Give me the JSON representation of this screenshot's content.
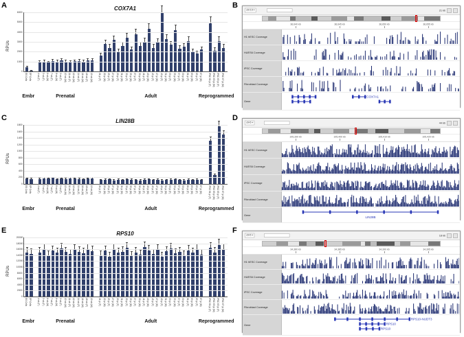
{
  "panels": {
    "letters": [
      "A",
      "B",
      "C",
      "D",
      "E",
      "F"
    ]
  },
  "chart_data": [
    {
      "type": "bar",
      "title": "COX7A1",
      "ylabel": "RPUs",
      "ylim": [
        0,
        6000
      ],
      "ytick_step": 1000,
      "bar_color": "#31406b",
      "error_pct": 0.12,
      "groups": [
        {
          "label": "Embr",
          "count": 2
        },
        {
          "label": "Prenatal",
          "count": 13
        },
        {
          "label": "Adult",
          "count": 24
        },
        {
          "label": "Reprogrammed",
          "count": 4
        }
      ],
      "categories": [
        "ES Cells",
        "EP Cells",
        "4 wk (F)",
        "5 wk (F)",
        "6 wk (M)",
        "7 wk (F)",
        "8 wk (M)",
        "9 wk (F)",
        "10 wk (M)",
        "11 wk (F)",
        "12 wk (M)",
        "14 wk (F)",
        "16 wk (M)",
        "18 wk (F)",
        "19 wk (M)",
        "21 yr (F)",
        "22 yr (M)",
        "25 yr (F)",
        "27 yr (M)",
        "29 yr (F)",
        "31 yr (M)",
        "33 yr (F)",
        "35 yr (M)",
        "37 yr (F)",
        "39 yr (M)",
        "41 yr (F)",
        "43 yr (M)",
        "45 yr (F)",
        "47 yr (M)",
        "49 yr (F)",
        "51 yr (M)",
        "53 yr (F)",
        "55 yr (M)",
        "57 yr (F)",
        "59 yr (M)",
        "61 yr (F)",
        "63 yr (M)",
        "65 yr (F)",
        "67 yr (M)",
        "iPSC 61 yr (F)",
        "iPSC 63 yr (M)",
        "iPSC 65 yr (F)",
        "iPSC 67 yr (M)"
      ],
      "values": [
        420,
        60,
        950,
        1000,
        900,
        1050,
        980,
        1100,
        1000,
        950,
        1020,
        1080,
        1010,
        1100,
        1150,
        1600,
        2800,
        2400,
        3200,
        2000,
        2600,
        3400,
        2200,
        3800,
        2600,
        3000,
        4300,
        2400,
        2900,
        5900,
        3300,
        2700,
        4200,
        2300,
        2500,
        3100,
        2000,
        1800,
        2200,
        4900,
        2100,
        3100,
        2400
      ]
    },
    {
      "type": "bar",
      "title": "LIN28B",
      "ylabel": "RPUs",
      "ylim": [
        0,
        1800
      ],
      "ytick_step": 200,
      "bar_color": "#31406b",
      "error_pct": 0.08,
      "groups": [
        {
          "label": "Embr",
          "count": 2
        },
        {
          "label": "Prenatal",
          "count": 13
        },
        {
          "label": "Adult",
          "count": 24
        },
        {
          "label": "Reprogrammed",
          "count": 4
        }
      ],
      "categories": [
        "ES Cells",
        "EP Cells",
        "4 wk (F)",
        "5 wk (F)",
        "6 wk (M)",
        "7 wk (F)",
        "8 wk (M)",
        "9 wk (F)",
        "10 wk (M)",
        "11 wk (F)",
        "12 wk (M)",
        "14 wk (F)",
        "16 wk (M)",
        "18 wk (F)",
        "19 wk (M)",
        "21 yr (F)",
        "22 yr (M)",
        "25 yr (F)",
        "27 yr (M)",
        "29 yr (F)",
        "31 yr (M)",
        "33 yr (F)",
        "35 yr (M)",
        "37 yr (F)",
        "39 yr (M)",
        "41 yr (F)",
        "43 yr (M)",
        "45 yr (F)",
        "47 yr (M)",
        "49 yr (F)",
        "51 yr (M)",
        "53 yr (F)",
        "55 yr (M)",
        "57 yr (F)",
        "59 yr (M)",
        "61 yr (F)",
        "63 yr (M)",
        "65 yr (F)",
        "67 yr (M)",
        "iPSC 61 yr (F)",
        "iPSC 63 yr (M)",
        "iPSC 65 yr (F)",
        "iPSC 67 yr (M)"
      ],
      "values": [
        160,
        150,
        150,
        170,
        160,
        180,
        140,
        160,
        150,
        170,
        160,
        150,
        140,
        160,
        170,
        120,
        130,
        140,
        110,
        130,
        120,
        140,
        130,
        120,
        110,
        130,
        140,
        120,
        130,
        110,
        120,
        130,
        140,
        120,
        110,
        130,
        120,
        130,
        120,
        1310,
        280,
        1760,
        1500
      ]
    },
    {
      "type": "bar",
      "title": "RPS10",
      "ylabel": "RPUs",
      "ylim": [
        0,
        20000
      ],
      "ytick_step": 2000,
      "bar_color": "#31406b",
      "error_pct": 0.1,
      "groups": [
        {
          "label": "Embr",
          "count": 2
        },
        {
          "label": "Prenatal",
          "count": 13
        },
        {
          "label": "Adult",
          "count": 24
        },
        {
          "label": "Reprogrammed",
          "count": 4
        }
      ],
      "categories": [
        "ES Cells",
        "EP Cells",
        "4 wk (F)",
        "5 wk (F)",
        "6 wk (M)",
        "7 wk (F)",
        "8 wk (M)",
        "9 wk (F)",
        "10 wk (M)",
        "11 wk (F)",
        "12 wk (M)",
        "14 wk (F)",
        "16 wk (M)",
        "18 wk (F)",
        "19 wk (M)",
        "21 yr (F)",
        "22 yr (M)",
        "25 yr (F)",
        "27 yr (M)",
        "29 yr (F)",
        "31 yr (M)",
        "33 yr (F)",
        "35 yr (M)",
        "37 yr (F)",
        "39 yr (M)",
        "41 yr (F)",
        "43 yr (M)",
        "45 yr (F)",
        "47 yr (M)",
        "49 yr (F)",
        "51 yr (M)",
        "53 yr (F)",
        "55 yr (M)",
        "57 yr (F)",
        "59 yr (M)",
        "61 yr (F)",
        "63 yr (M)",
        "65 yr (F)",
        "67 yr (M)",
        "iPSC 61 yr (F)",
        "iPSC 63 yr (M)",
        "iPSC 65 yr (F)",
        "iPSC 67 yr (M)"
      ],
      "values": [
        15000,
        14500,
        15000,
        16000,
        14000,
        15500,
        14800,
        16200,
        15100,
        14400,
        15800,
        15200,
        14700,
        16000,
        15400,
        14000,
        15500,
        13500,
        16000,
        14800,
        15200,
        16500,
        13800,
        15000,
        14200,
        16800,
        15600,
        14400,
        15900,
        13600,
        15300,
        16200,
        14600,
        15100,
        13900,
        15700,
        14900,
        16100,
        14300,
        16500,
        15000,
        17500,
        16000
      ]
    }
  ],
  "browsers": [
    {
      "chrom": "chr19",
      "window_label": "21 kb",
      "ruler_ticks": [
        "36,640 kb",
        "36,645 kb",
        "36,650 kb",
        "36,655 kb"
      ],
      "tracks": [
        "H1 hESC Coverage",
        "HUES6 Coverage",
        "iPSC Coverage",
        "Fibroblast Coverage"
      ],
      "gene_label": "Gene",
      "genes": [
        {
          "name": "",
          "start": 0.06,
          "end": 0.19,
          "row": 0,
          "exons": 5
        },
        {
          "name": "",
          "start": 0.06,
          "end": 0.16,
          "row": 1,
          "exons": 4
        },
        {
          "name": "COX7A1",
          "start": 0.4,
          "end": 0.47,
          "row": 0,
          "exons": 3
        },
        {
          "name": "",
          "start": 0.55,
          "end": 0.61,
          "row": 1,
          "exons": 3
        }
      ],
      "gene_rows": 2,
      "density": 0.5,
      "marker": 0.86,
      "seed": 19
    },
    {
      "chrom": "chr6",
      "window_label": "44 kb",
      "ruler_ticks": [
        "105,390 kb",
        "105,400 kb",
        "105,410 kb",
        "105,420 kb"
      ],
      "tracks": [
        "H1 hESC Coverage",
        "HUES6 Coverage",
        "iPSC Coverage",
        "Fibroblast Coverage"
      ],
      "gene_label": "Gene",
      "genes": [
        {
          "name": "LIN28B",
          "start": 0.12,
          "end": 0.88,
          "row": 0,
          "exons": 6
        }
      ],
      "gene_rows": 1,
      "density": 0.97,
      "marker": 0.52,
      "seed": 6
    },
    {
      "chrom": "chr6",
      "window_label": "18 kb",
      "ruler_ticks": [
        "34,380 kb",
        "34,385 kb",
        "34,390 kb",
        "34,395 kb"
      ],
      "tracks": [
        "H1 hESC Coverage",
        "HUES6 Coverage",
        "iPSC Coverage",
        "Fibroblast Coverage"
      ],
      "gene_label": "Gene",
      "genes": [
        {
          "name": "RPS10-NUDT3",
          "start": 0.3,
          "end": 0.72,
          "row": 0,
          "exons": 7
        },
        {
          "name": "RPS10",
          "start": 0.44,
          "end": 0.58,
          "row": 1,
          "exons": 5
        },
        {
          "name": "RPS10",
          "start": 0.44,
          "end": 0.55,
          "row": 2,
          "exons": 4
        }
      ],
      "gene_rows": 3,
      "density": 0.85,
      "marker": 0.35,
      "seed": 34
    }
  ]
}
